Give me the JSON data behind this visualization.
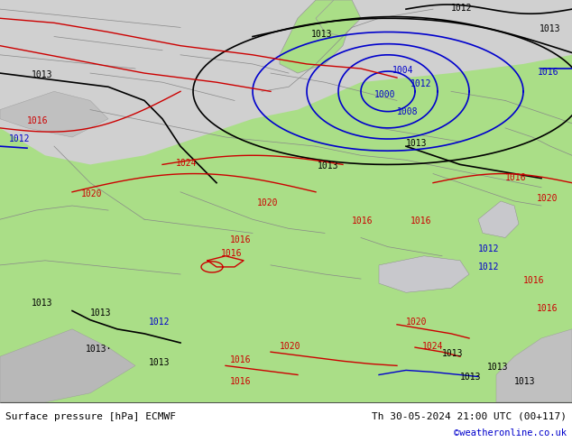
{
  "title_left": "Surface pressure [hPa] ECMWF",
  "title_right": "Th 30-05-2024 21:00 UTC (00+117)",
  "credit": "©weatheronline.co.uk",
  "bg_color": "#d0d0d0",
  "land_color": "#aade87",
  "water_color": "#d0d0d0",
  "mountain_color": "#c8c8c8",
  "footer_bg": "#ffffff",
  "text_color_black": "#000000",
  "text_color_red": "#cc0000",
  "text_color_blue": "#0000cc",
  "contour_black": "#000000",
  "contour_red": "#cc0000",
  "contour_blue": "#0000cc",
  "figsize": [
    6.34,
    4.9
  ],
  "dpi": 100
}
